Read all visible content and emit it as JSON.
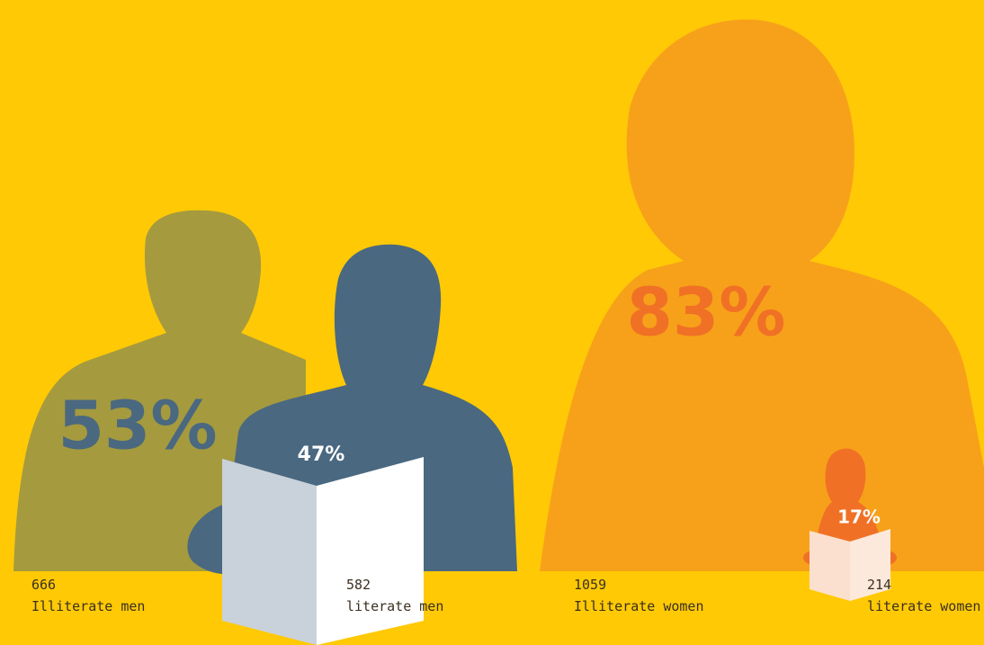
{
  "figures": [
    {
      "percent": "53%",
      "count": "666",
      "label": "Illiterate men"
    },
    {
      "percent": "47%",
      "count": "582",
      "label": "literate men"
    },
    {
      "percent": "83%",
      "count": "1059",
      "label": "Illiterate women"
    },
    {
      "percent": "17%",
      "count": "214",
      "label": "literate women"
    }
  ]
}
